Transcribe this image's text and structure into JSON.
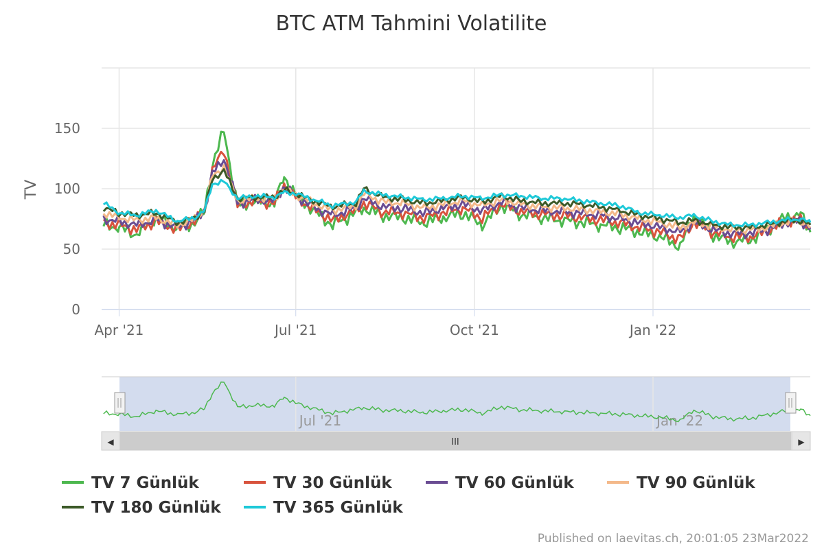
{
  "chart_data": {
    "type": "line",
    "title": "BTC ATM Tahmini Volatilite",
    "ylabel": "TV",
    "xlabel": "",
    "ylim": [
      0,
      200
    ],
    "y_ticks": [
      0,
      50,
      100,
      150
    ],
    "x_ticks": [
      "Apr '21",
      "Jul '21",
      "Oct '21",
      "Jan '22"
    ],
    "x_tick_days": [
      0,
      91,
      183,
      275
    ],
    "x_range_days": [
      -9,
      356
    ],
    "dates": [
      "2021-03-24",
      "2021-04-01",
      "2021-04-10",
      "2021-04-20",
      "2021-05-01",
      "2021-05-10",
      "2021-05-15",
      "2021-05-19",
      "2021-05-25",
      "2021-06-01",
      "2021-06-10",
      "2021-06-20",
      "2021-06-25",
      "2021-07-01",
      "2021-07-10",
      "2021-07-20",
      "2021-08-01",
      "2021-08-05",
      "2021-08-15",
      "2021-08-25",
      "2021-09-05",
      "2021-09-15",
      "2021-09-25",
      "2021-10-05",
      "2021-10-15",
      "2021-10-25",
      "2021-11-05",
      "2021-11-15",
      "2021-11-25",
      "2021-12-05",
      "2021-12-15",
      "2021-12-25",
      "2022-01-05",
      "2022-01-15",
      "2022-01-22",
      "2022-02-01",
      "2022-02-10",
      "2022-02-20",
      "2022-03-01",
      "2022-03-10",
      "2022-03-18",
      "2022-03-23"
    ],
    "series": [
      {
        "name": "TV 7 Günlük",
        "color": "#4db84f",
        "values": [
          70,
          68,
          62,
          76,
          67,
          72,
          82,
          120,
          148,
          85,
          90,
          88,
          110,
          95,
          82,
          70,
          80,
          84,
          78,
          76,
          72,
          76,
          80,
          70,
          86,
          79,
          76,
          74,
          72,
          70,
          68,
          64,
          60,
          52,
          78,
          62,
          56,
          58,
          66,
          76,
          79,
          64
        ]
      },
      {
        "name": "TV 30 Günlük",
        "color": "#d8533d",
        "values": [
          72,
          70,
          66,
          73,
          66,
          73,
          82,
          115,
          132,
          86,
          90,
          88,
          103,
          93,
          83,
          74,
          82,
          88,
          81,
          80,
          76,
          80,
          84,
          76,
          87,
          81,
          79,
          78,
          76,
          74,
          72,
          68,
          64,
          58,
          72,
          64,
          60,
          60,
          65,
          73,
          74,
          67
        ]
      },
      {
        "name": "TV 60 Günlük",
        "color": "#6a4c93",
        "values": [
          75,
          73,
          70,
          74,
          68,
          74,
          82,
          112,
          125,
          88,
          91,
          90,
          101,
          94,
          85,
          78,
          84,
          92,
          85,
          84,
          80,
          84,
          87,
          82,
          89,
          84,
          82,
          81,
          80,
          78,
          75,
          72,
          68,
          64,
          72,
          66,
          63,
          63,
          66,
          72,
          73,
          68
        ]
      },
      {
        "name": "TV 90 Günlük",
        "color": "#f4b98a",
        "values": [
          80,
          76,
          74,
          76,
          70,
          75,
          82,
          110,
          118,
          90,
          92,
          92,
          100,
          95,
          88,
          82,
          86,
          96,
          89,
          88,
          84,
          87,
          90,
          86,
          91,
          87,
          85,
          84,
          83,
          81,
          79,
          75,
          72,
          68,
          72,
          69,
          66,
          66,
          68,
          72,
          73,
          69
        ]
      },
      {
        "name": "TV 180 Günlük",
        "color": "#3c5a28",
        "values": [
          84,
          80,
          78,
          80,
          72,
          76,
          82,
          108,
          115,
          92,
          93,
          93,
          99,
          96,
          90,
          85,
          88,
          100,
          93,
          91,
          88,
          90,
          93,
          89,
          94,
          90,
          88,
          88,
          87,
          85,
          82,
          78,
          75,
          72,
          74,
          70,
          68,
          68,
          70,
          73,
          74,
          70
        ]
      },
      {
        "name": "TV 365 Günlük",
        "color": "#1ec9d8",
        "values": [
          88,
          80,
          78,
          82,
          73,
          76,
          82,
          104,
          106,
          92,
          94,
          93,
          97,
          96,
          91,
          86,
          89,
          98,
          95,
          93,
          91,
          92,
          94,
          92,
          95,
          94,
          92,
          92,
          90,
          88,
          86,
          80,
          78,
          76,
          78,
          73,
          70,
          70,
          72,
          74,
          75,
          72
        ]
      }
    ],
    "navigator": {
      "series_name": "TV 7 Günlük",
      "x_ticks": [
        "Jul '21",
        "Jan '22"
      ],
      "handle_label": "III"
    },
    "legend_position": "bottom-left"
  },
  "credit": "Published on laevitas.ch, 20:01:05 23Mar2022",
  "arrows": {
    "left": "◀",
    "right": "▶"
  }
}
